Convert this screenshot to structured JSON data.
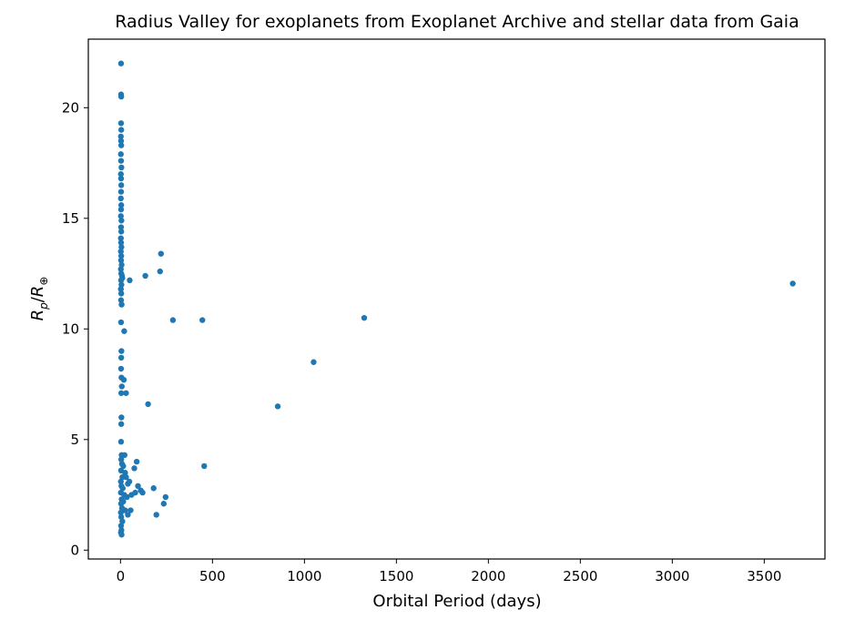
{
  "chart_data": {
    "type": "scatter",
    "title": "Radius Valley for exoplanets from Exoplanet Archive and stellar data from Gaia",
    "xlabel": "Orbital Period (days)",
    "ylabel": "R_p/R_⊕",
    "xlim": [
      -175,
      3830
    ],
    "ylim": [
      -0.4,
      23.1
    ],
    "xticks": [
      0,
      500,
      1000,
      1500,
      2000,
      2500,
      3000,
      3500
    ],
    "yticks": [
      0,
      5,
      10,
      15,
      20
    ],
    "grid": false,
    "marker_color": "#1f77b4",
    "points": [
      [
        3,
        22.0
      ],
      [
        3,
        20.6
      ],
      [
        4,
        20.5
      ],
      [
        3,
        19.3
      ],
      [
        4,
        19.0
      ],
      [
        2,
        18.7
      ],
      [
        3,
        18.5
      ],
      [
        4,
        18.3
      ],
      [
        2,
        17.9
      ],
      [
        3,
        17.6
      ],
      [
        5,
        17.3
      ],
      [
        2,
        17.0
      ],
      [
        3,
        16.8
      ],
      [
        4,
        16.5
      ],
      [
        3,
        16.2
      ],
      [
        2,
        15.9
      ],
      [
        4,
        15.6
      ],
      [
        3,
        15.4
      ],
      [
        2,
        15.1
      ],
      [
        5,
        14.9
      ],
      [
        3,
        14.6
      ],
      [
        4,
        14.4
      ],
      [
        2,
        14.1
      ],
      [
        3,
        13.9
      ],
      [
        5,
        13.7
      ],
      [
        2,
        13.5
      ],
      [
        4,
        13.3
      ],
      [
        3,
        13.1
      ],
      [
        6,
        12.9
      ],
      [
        2,
        12.7
      ],
      [
        4,
        12.5
      ],
      [
        8,
        12.4
      ],
      [
        3,
        12.2
      ],
      [
        5,
        12.0
      ],
      [
        10,
        12.3
      ],
      [
        2,
        11.8
      ],
      [
        4,
        11.6
      ],
      [
        3,
        11.3
      ],
      [
        6,
        11.1
      ],
      [
        3,
        10.3
      ],
      [
        20,
        9.9
      ],
      [
        5,
        9.0
      ],
      [
        4,
        8.7
      ],
      [
        3,
        8.2
      ],
      [
        5,
        7.8
      ],
      [
        18,
        7.7
      ],
      [
        7,
        7.4
      ],
      [
        4,
        7.1
      ],
      [
        30,
        7.1
      ],
      [
        5,
        6.0
      ],
      [
        4,
        5.7
      ],
      [
        3,
        4.9
      ],
      [
        6,
        4.3
      ],
      [
        22,
        4.3
      ],
      [
        4,
        4.1
      ],
      [
        8,
        3.9
      ],
      [
        15,
        3.8
      ],
      [
        3,
        3.6
      ],
      [
        25,
        3.5
      ],
      [
        10,
        3.3
      ],
      [
        2,
        3.1
      ],
      [
        30,
        3.3
      ],
      [
        5,
        2.9
      ],
      [
        40,
        3.0
      ],
      [
        12,
        2.8
      ],
      [
        2,
        2.6
      ],
      [
        20,
        2.5
      ],
      [
        6,
        2.3
      ],
      [
        35,
        2.4
      ],
      [
        3,
        2.1
      ],
      [
        15,
        2.2
      ],
      [
        8,
        1.9
      ],
      [
        2,
        1.7
      ],
      [
        25,
        1.8
      ],
      [
        4,
        1.5
      ],
      [
        10,
        1.3
      ],
      [
        3,
        1.1
      ],
      [
        5,
        0.9
      ],
      [
        2,
        0.8
      ],
      [
        6,
        0.7
      ],
      [
        40,
        1.6
      ],
      [
        55,
        1.8
      ],
      [
        48,
        3.1
      ],
      [
        60,
        2.5
      ],
      [
        75,
        3.7
      ],
      [
        88,
        4.0
      ],
      [
        95,
        2.9
      ],
      [
        110,
        2.7
      ],
      [
        120,
        2.6
      ],
      [
        80,
        2.6
      ],
      [
        50,
        12.2
      ],
      [
        135,
        12.4
      ],
      [
        150,
        6.6
      ],
      [
        180,
        2.8
      ],
      [
        195,
        1.6
      ],
      [
        215,
        12.6
      ],
      [
        220,
        13.4
      ],
      [
        235,
        2.1
      ],
      [
        245,
        2.4
      ],
      [
        285,
        10.4
      ],
      [
        445,
        10.4
      ],
      [
        455,
        3.8
      ],
      [
        855,
        6.5
      ],
      [
        1050,
        8.5
      ],
      [
        1325,
        10.5
      ],
      [
        3655,
        12.05
      ]
    ]
  }
}
